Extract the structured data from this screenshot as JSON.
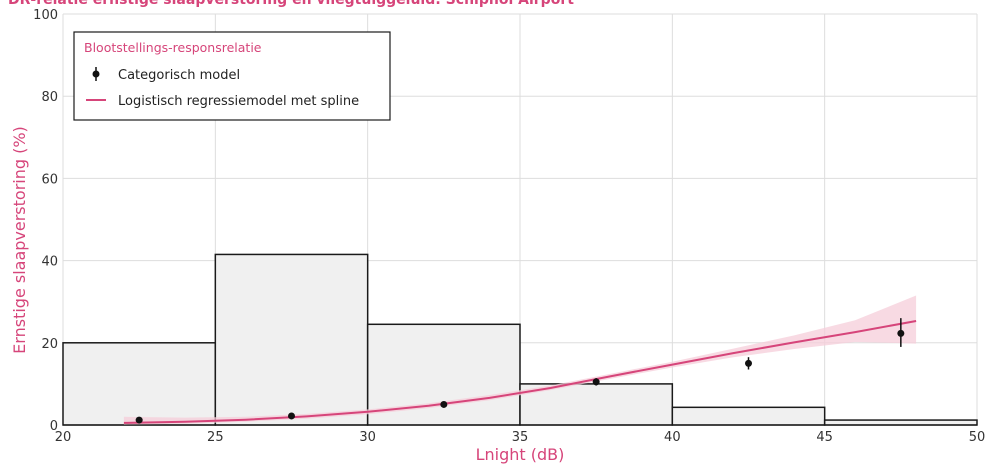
{
  "chart_data": {
    "type": "bar",
    "title": "DR-relatie ernstige slaapverstoring en vliegtuiggeluid: Schiphol Airport",
    "xlabel": "Lnight (dB)",
    "ylabel": "Ernstige slaapverstoring (%)",
    "xlim": [
      20,
      50
    ],
    "ylim": [
      0,
      100
    ],
    "x_ticks": [
      "20",
      "25",
      "30",
      "35",
      "40",
      "45",
      "50"
    ],
    "y_ticks": [
      "0",
      "20",
      "40",
      "60",
      "80",
      "100"
    ],
    "grid": true,
    "legend_position": "top-left",
    "legend_title": "Blootstellings-responsrelatie",
    "histogram": [
      {
        "x0": 20,
        "x1": 25,
        "value": 20
      },
      {
        "x0": 25,
        "x1": 30,
        "value": 41.5
      },
      {
        "x0": 30,
        "x1": 35,
        "value": 24.5
      },
      {
        "x0": 35,
        "x1": 40,
        "value": 10
      },
      {
        "x0": 40,
        "x1": 45,
        "value": 4.3
      },
      {
        "x0": 45,
        "x1": 50,
        "value": 1.2
      }
    ],
    "series": [
      {
        "name": "Categorisch model",
        "kind": "points",
        "points": [
          {
            "x": 22.5,
            "y": 1.2,
            "lo": 0.6,
            "hi": 1.8
          },
          {
            "x": 27.5,
            "y": 2.2,
            "lo": 1.7,
            "hi": 2.7
          },
          {
            "x": 32.5,
            "y": 5.0,
            "lo": 4.4,
            "hi": 5.6
          },
          {
            "x": 37.5,
            "y": 10.5,
            "lo": 9.6,
            "hi": 11.4
          },
          {
            "x": 42.5,
            "y": 15.0,
            "lo": 13.5,
            "hi": 16.5
          },
          {
            "x": 47.5,
            "y": 22.3,
            "lo": 19.0,
            "hi": 26.0
          }
        ]
      },
      {
        "name": "Logistisch regressiemodel met spline",
        "kind": "line",
        "x": [
          22,
          24,
          26,
          28,
          30,
          32,
          34,
          36,
          38,
          40,
          42,
          44,
          46,
          48
        ],
        "y": [
          0.5,
          0.8,
          1.3,
          2.1,
          3.2,
          4.7,
          6.6,
          9.0,
          11.9,
          14.7,
          17.5,
          20.1,
          22.6,
          25.3
        ],
        "lo": [
          0.1,
          0.3,
          0.8,
          1.5,
          2.6,
          4.1,
          6.0,
          8.5,
          11.3,
          14.0,
          16.5,
          18.5,
          20.2,
          19.8
        ],
        "hi": [
          2.0,
          1.8,
          2.0,
          2.7,
          3.8,
          5.3,
          7.3,
          9.6,
          12.5,
          15.4,
          18.6,
          21.8,
          25.5,
          31.5
        ]
      }
    ]
  },
  "colors": {
    "accent": "#d6457a",
    "band": "#f6cdd9",
    "bar_fill": "#f0f0f0",
    "bar_stroke": "#1a1a1a",
    "grid": "#dddddd",
    "point": "#111111"
  },
  "icons": {
    "point_marker": "filled-circle-with-errorbar",
    "line_marker": "line-segment"
  }
}
